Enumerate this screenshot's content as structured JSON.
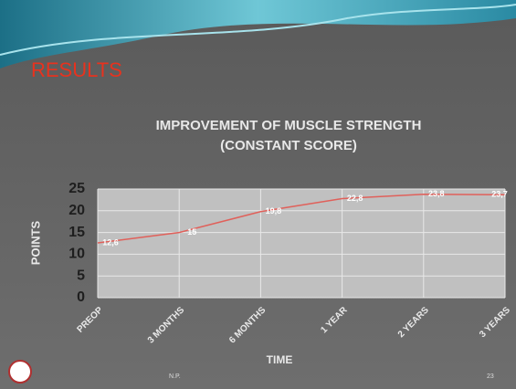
{
  "slide": {
    "heading": "RESULTS",
    "footer": "N.P.",
    "page_number": "23"
  },
  "chart_data": {
    "type": "line",
    "title": "IMPROVEMENT OF MUSCLE STRENGTH",
    "subtitle": "(CONSTANT SCORE)",
    "x_label": "TIME",
    "y_label": "POINTS",
    "categories": [
      "PREOP",
      "3 MONTHS",
      "6 MONTHS",
      "1 YEAR",
      "2 YEARS",
      "3 YEARS"
    ],
    "values": [
      12.6,
      15,
      19.8,
      22.8,
      23.8,
      23.7
    ],
    "value_labels": [
      "12,6",
      "15",
      "19,8",
      "22,8",
      "23,8",
      "23,7"
    ],
    "color": "#e0605a",
    "ylim": [
      0,
      25
    ],
    "yticks": [
      0,
      5,
      10,
      15,
      20,
      25
    ],
    "grid": true
  }
}
